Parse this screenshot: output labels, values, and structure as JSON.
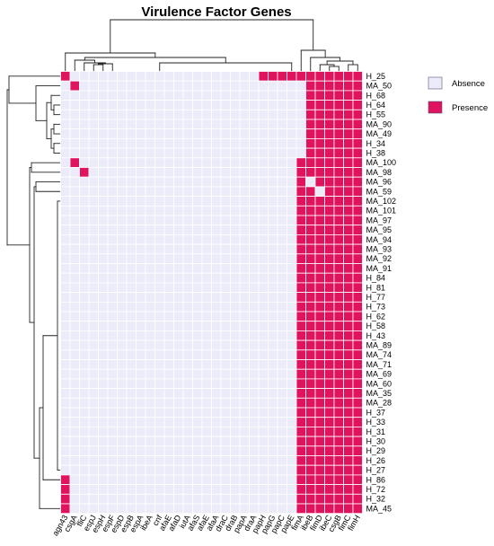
{
  "chart_data": {
    "type": "heatmap",
    "title": "Virulence Factor Genes",
    "columns": [
      "agn43",
      "csgA",
      "fliC",
      "espJ",
      "espH",
      "espF",
      "espD",
      "espB",
      "espA",
      "ibeA",
      "cnf",
      "afaE",
      "afaD",
      "iutA",
      "afaS",
      "afaE",
      "afaA",
      "draC",
      "draB",
      "papA",
      "draA",
      "papH",
      "papG",
      "papC",
      "papE",
      "fimA",
      "ibeB",
      "fimD",
      "ibeC",
      "csgB",
      "fimC",
      "fimH"
    ],
    "rows": [
      "H_25",
      "MA_50",
      "H_68",
      "H_64",
      "H_55",
      "MA_90",
      "MA_49",
      "H_34",
      "H_38",
      "MA_100",
      "MA_98",
      "MA_96",
      "MA_59",
      "MA_102",
      "MA_101",
      "MA_97",
      "MA_95",
      "MA_94",
      "MA_93",
      "MA_92",
      "MA_91",
      "H_84",
      "H_81",
      "H_77",
      "H_73",
      "H_62",
      "H_58",
      "H_43",
      "MA_89",
      "MA_74",
      "MA_71",
      "MA_69",
      "MA_60",
      "MA_35",
      "MA_28",
      "H_37",
      "H_33",
      "H_31",
      "H_30",
      "H_29",
      "H_26",
      "H_27",
      "H_86",
      "H_72",
      "H_32",
      "MA_45"
    ],
    "legend": [
      {
        "label": "Absence",
        "value": 0,
        "color": "#ebebfa"
      },
      {
        "label": "Presence",
        "value": 1,
        "color": "#e0135f"
      }
    ],
    "values": [
      [
        1,
        0,
        0,
        0,
        0,
        0,
        0,
        0,
        0,
        0,
        0,
        0,
        0,
        0,
        0,
        0,
        0,
        0,
        0,
        0,
        0,
        1,
        1,
        1,
        1,
        1,
        1,
        1,
        1,
        1,
        1,
        1
      ],
      [
        0,
        1,
        0,
        0,
        0,
        0,
        0,
        0,
        0,
        0,
        0,
        0,
        0,
        0,
        0,
        0,
        0,
        0,
        0,
        0,
        0,
        0,
        0,
        0,
        0,
        0,
        1,
        1,
        1,
        1,
        1,
        1
      ],
      [
        0,
        0,
        0,
        0,
        0,
        0,
        0,
        0,
        0,
        0,
        0,
        0,
        0,
        0,
        0,
        0,
        0,
        0,
        0,
        0,
        0,
        0,
        0,
        0,
        0,
        0,
        1,
        1,
        1,
        1,
        1,
        1
      ],
      [
        0,
        0,
        0,
        0,
        0,
        0,
        0,
        0,
        0,
        0,
        0,
        0,
        0,
        0,
        0,
        0,
        0,
        0,
        0,
        0,
        0,
        0,
        0,
        0,
        0,
        0,
        1,
        1,
        1,
        1,
        1,
        1
      ],
      [
        0,
        0,
        0,
        0,
        0,
        0,
        0,
        0,
        0,
        0,
        0,
        0,
        0,
        0,
        0,
        0,
        0,
        0,
        0,
        0,
        0,
        0,
        0,
        0,
        0,
        0,
        1,
        1,
        1,
        1,
        1,
        1
      ],
      [
        0,
        0,
        0,
        0,
        0,
        0,
        0,
        0,
        0,
        0,
        0,
        0,
        0,
        0,
        0,
        0,
        0,
        0,
        0,
        0,
        0,
        0,
        0,
        0,
        0,
        0,
        1,
        1,
        1,
        1,
        1,
        1
      ],
      [
        0,
        0,
        0,
        0,
        0,
        0,
        0,
        0,
        0,
        0,
        0,
        0,
        0,
        0,
        0,
        0,
        0,
        0,
        0,
        0,
        0,
        0,
        0,
        0,
        0,
        0,
        1,
        1,
        1,
        1,
        1,
        1
      ],
      [
        0,
        0,
        0,
        0,
        0,
        0,
        0,
        0,
        0,
        0,
        0,
        0,
        0,
        0,
        0,
        0,
        0,
        0,
        0,
        0,
        0,
        0,
        0,
        0,
        0,
        0,
        1,
        1,
        1,
        1,
        1,
        1
      ],
      [
        0,
        0,
        0,
        0,
        0,
        0,
        0,
        0,
        0,
        0,
        0,
        0,
        0,
        0,
        0,
        0,
        0,
        0,
        0,
        0,
        0,
        0,
        0,
        0,
        0,
        0,
        1,
        1,
        1,
        1,
        1,
        1
      ],
      [
        0,
        1,
        0,
        0,
        0,
        0,
        0,
        0,
        0,
        0,
        0,
        0,
        0,
        0,
        0,
        0,
        0,
        0,
        0,
        0,
        0,
        0,
        0,
        0,
        0,
        1,
        1,
        1,
        1,
        1,
        1,
        1
      ],
      [
        0,
        0,
        1,
        0,
        0,
        0,
        0,
        0,
        0,
        0,
        0,
        0,
        0,
        0,
        0,
        0,
        0,
        0,
        0,
        0,
        0,
        0,
        0,
        0,
        0,
        1,
        1,
        1,
        1,
        1,
        1,
        1
      ],
      [
        0,
        0,
        0,
        0,
        0,
        0,
        0,
        0,
        0,
        0,
        0,
        0,
        0,
        0,
        0,
        0,
        0,
        0,
        0,
        0,
        0,
        0,
        0,
        0,
        0,
        1,
        0,
        1,
        1,
        1,
        1,
        1
      ],
      [
        0,
        0,
        0,
        0,
        0,
        0,
        0,
        0,
        0,
        0,
        0,
        0,
        0,
        0,
        0,
        0,
        0,
        0,
        0,
        0,
        0,
        0,
        0,
        0,
        0,
        1,
        1,
        0,
        1,
        1,
        1,
        1
      ],
      [
        0,
        0,
        0,
        0,
        0,
        0,
        0,
        0,
        0,
        0,
        0,
        0,
        0,
        0,
        0,
        0,
        0,
        0,
        0,
        0,
        0,
        0,
        0,
        0,
        0,
        1,
        1,
        1,
        1,
        1,
        1,
        1
      ],
      [
        0,
        0,
        0,
        0,
        0,
        0,
        0,
        0,
        0,
        0,
        0,
        0,
        0,
        0,
        0,
        0,
        0,
        0,
        0,
        0,
        0,
        0,
        0,
        0,
        0,
        1,
        1,
        1,
        1,
        1,
        1,
        1
      ],
      [
        0,
        0,
        0,
        0,
        0,
        0,
        0,
        0,
        0,
        0,
        0,
        0,
        0,
        0,
        0,
        0,
        0,
        0,
        0,
        0,
        0,
        0,
        0,
        0,
        0,
        1,
        1,
        1,
        1,
        1,
        1,
        1
      ],
      [
        0,
        0,
        0,
        0,
        0,
        0,
        0,
        0,
        0,
        0,
        0,
        0,
        0,
        0,
        0,
        0,
        0,
        0,
        0,
        0,
        0,
        0,
        0,
        0,
        0,
        1,
        1,
        1,
        1,
        1,
        1,
        1
      ],
      [
        0,
        0,
        0,
        0,
        0,
        0,
        0,
        0,
        0,
        0,
        0,
        0,
        0,
        0,
        0,
        0,
        0,
        0,
        0,
        0,
        0,
        0,
        0,
        0,
        0,
        1,
        1,
        1,
        1,
        1,
        1,
        1
      ],
      [
        0,
        0,
        0,
        0,
        0,
        0,
        0,
        0,
        0,
        0,
        0,
        0,
        0,
        0,
        0,
        0,
        0,
        0,
        0,
        0,
        0,
        0,
        0,
        0,
        0,
        1,
        1,
        1,
        1,
        1,
        1,
        1
      ],
      [
        0,
        0,
        0,
        0,
        0,
        0,
        0,
        0,
        0,
        0,
        0,
        0,
        0,
        0,
        0,
        0,
        0,
        0,
        0,
        0,
        0,
        0,
        0,
        0,
        0,
        1,
        1,
        1,
        1,
        1,
        1,
        1
      ],
      [
        0,
        0,
        0,
        0,
        0,
        0,
        0,
        0,
        0,
        0,
        0,
        0,
        0,
        0,
        0,
        0,
        0,
        0,
        0,
        0,
        0,
        0,
        0,
        0,
        0,
        1,
        1,
        1,
        1,
        1,
        1,
        1
      ],
      [
        0,
        0,
        0,
        0,
        0,
        0,
        0,
        0,
        0,
        0,
        0,
        0,
        0,
        0,
        0,
        0,
        0,
        0,
        0,
        0,
        0,
        0,
        0,
        0,
        0,
        1,
        1,
        1,
        1,
        1,
        1,
        1
      ],
      [
        0,
        0,
        0,
        0,
        0,
        0,
        0,
        0,
        0,
        0,
        0,
        0,
        0,
        0,
        0,
        0,
        0,
        0,
        0,
        0,
        0,
        0,
        0,
        0,
        0,
        1,
        1,
        1,
        1,
        1,
        1,
        1
      ],
      [
        0,
        0,
        0,
        0,
        0,
        0,
        0,
        0,
        0,
        0,
        0,
        0,
        0,
        0,
        0,
        0,
        0,
        0,
        0,
        0,
        0,
        0,
        0,
        0,
        0,
        1,
        1,
        1,
        1,
        1,
        1,
        1
      ],
      [
        0,
        0,
        0,
        0,
        0,
        0,
        0,
        0,
        0,
        0,
        0,
        0,
        0,
        0,
        0,
        0,
        0,
        0,
        0,
        0,
        0,
        0,
        0,
        0,
        0,
        1,
        1,
        1,
        1,
        1,
        1,
        1
      ],
      [
        0,
        0,
        0,
        0,
        0,
        0,
        0,
        0,
        0,
        0,
        0,
        0,
        0,
        0,
        0,
        0,
        0,
        0,
        0,
        0,
        0,
        0,
        0,
        0,
        0,
        1,
        1,
        1,
        1,
        1,
        1,
        1
      ],
      [
        0,
        0,
        0,
        0,
        0,
        0,
        0,
        0,
        0,
        0,
        0,
        0,
        0,
        0,
        0,
        0,
        0,
        0,
        0,
        0,
        0,
        0,
        0,
        0,
        0,
        1,
        1,
        1,
        1,
        1,
        1,
        1
      ],
      [
        0,
        0,
        0,
        0,
        0,
        0,
        0,
        0,
        0,
        0,
        0,
        0,
        0,
        0,
        0,
        0,
        0,
        0,
        0,
        0,
        0,
        0,
        0,
        0,
        0,
        1,
        1,
        1,
        1,
        1,
        1,
        1
      ],
      [
        0,
        0,
        0,
        0,
        0,
        0,
        0,
        0,
        0,
        0,
        0,
        0,
        0,
        0,
        0,
        0,
        0,
        0,
        0,
        0,
        0,
        0,
        0,
        0,
        0,
        1,
        1,
        1,
        1,
        1,
        1,
        1
      ],
      [
        0,
        0,
        0,
        0,
        0,
        0,
        0,
        0,
        0,
        0,
        0,
        0,
        0,
        0,
        0,
        0,
        0,
        0,
        0,
        0,
        0,
        0,
        0,
        0,
        0,
        1,
        1,
        1,
        1,
        1,
        1,
        1
      ],
      [
        0,
        0,
        0,
        0,
        0,
        0,
        0,
        0,
        0,
        0,
        0,
        0,
        0,
        0,
        0,
        0,
        0,
        0,
        0,
        0,
        0,
        0,
        0,
        0,
        0,
        1,
        1,
        1,
        1,
        1,
        1,
        1
      ],
      [
        0,
        0,
        0,
        0,
        0,
        0,
        0,
        0,
        0,
        0,
        0,
        0,
        0,
        0,
        0,
        0,
        0,
        0,
        0,
        0,
        0,
        0,
        0,
        0,
        0,
        1,
        1,
        1,
        1,
        1,
        1,
        1
      ],
      [
        0,
        0,
        0,
        0,
        0,
        0,
        0,
        0,
        0,
        0,
        0,
        0,
        0,
        0,
        0,
        0,
        0,
        0,
        0,
        0,
        0,
        0,
        0,
        0,
        0,
        1,
        1,
        1,
        1,
        1,
        1,
        1
      ],
      [
        0,
        0,
        0,
        0,
        0,
        0,
        0,
        0,
        0,
        0,
        0,
        0,
        0,
        0,
        0,
        0,
        0,
        0,
        0,
        0,
        0,
        0,
        0,
        0,
        0,
        1,
        1,
        1,
        1,
        1,
        1,
        1
      ],
      [
        0,
        0,
        0,
        0,
        0,
        0,
        0,
        0,
        0,
        0,
        0,
        0,
        0,
        0,
        0,
        0,
        0,
        0,
        0,
        0,
        0,
        0,
        0,
        0,
        0,
        1,
        1,
        1,
        1,
        1,
        1,
        1
      ],
      [
        0,
        0,
        0,
        0,
        0,
        0,
        0,
        0,
        0,
        0,
        0,
        0,
        0,
        0,
        0,
        0,
        0,
        0,
        0,
        0,
        0,
        0,
        0,
        0,
        0,
        1,
        1,
        1,
        1,
        1,
        1,
        1
      ],
      [
        0,
        0,
        0,
        0,
        0,
        0,
        0,
        0,
        0,
        0,
        0,
        0,
        0,
        0,
        0,
        0,
        0,
        0,
        0,
        0,
        0,
        0,
        0,
        0,
        0,
        1,
        1,
        1,
        1,
        1,
        1,
        1
      ],
      [
        0,
        0,
        0,
        0,
        0,
        0,
        0,
        0,
        0,
        0,
        0,
        0,
        0,
        0,
        0,
        0,
        0,
        0,
        0,
        0,
        0,
        0,
        0,
        0,
        0,
        1,
        1,
        1,
        1,
        1,
        1,
        1
      ],
      [
        0,
        0,
        0,
        0,
        0,
        0,
        0,
        0,
        0,
        0,
        0,
        0,
        0,
        0,
        0,
        0,
        0,
        0,
        0,
        0,
        0,
        0,
        0,
        0,
        0,
        1,
        1,
        1,
        1,
        1,
        1,
        1
      ],
      [
        0,
        0,
        0,
        0,
        0,
        0,
        0,
        0,
        0,
        0,
        0,
        0,
        0,
        0,
        0,
        0,
        0,
        0,
        0,
        0,
        0,
        0,
        0,
        0,
        0,
        1,
        1,
        1,
        1,
        1,
        1,
        1
      ],
      [
        0,
        0,
        0,
        0,
        0,
        0,
        0,
        0,
        0,
        0,
        0,
        0,
        0,
        0,
        0,
        0,
        0,
        0,
        0,
        0,
        0,
        0,
        0,
        0,
        0,
        1,
        1,
        1,
        1,
        1,
        1,
        1
      ],
      [
        0,
        0,
        0,
        0,
        0,
        0,
        0,
        0,
        0,
        0,
        0,
        0,
        0,
        0,
        0,
        0,
        0,
        0,
        0,
        0,
        0,
        0,
        0,
        0,
        0,
        1,
        1,
        1,
        1,
        1,
        1,
        1
      ],
      [
        1,
        0,
        0,
        0,
        0,
        0,
        0,
        0,
        0,
        0,
        0,
        0,
        0,
        0,
        0,
        0,
        0,
        0,
        0,
        0,
        0,
        0,
        0,
        0,
        0,
        1,
        1,
        1,
        1,
        1,
        1,
        1
      ],
      [
        1,
        0,
        0,
        0,
        0,
        0,
        0,
        0,
        0,
        0,
        0,
        0,
        0,
        0,
        0,
        0,
        0,
        0,
        0,
        0,
        0,
        0,
        0,
        0,
        0,
        1,
        1,
        1,
        1,
        1,
        1,
        1
      ],
      [
        1,
        0,
        0,
        0,
        0,
        0,
        0,
        0,
        0,
        0,
        0,
        0,
        0,
        0,
        0,
        0,
        0,
        0,
        0,
        0,
        0,
        0,
        0,
        0,
        0,
        1,
        1,
        1,
        1,
        1,
        1,
        1
      ],
      [
        1,
        0,
        0,
        0,
        0,
        0,
        0,
        0,
        0,
        0,
        0,
        0,
        0,
        0,
        0,
        0,
        0,
        0,
        0,
        0,
        0,
        0,
        0,
        0,
        0,
        1,
        1,
        1,
        1,
        1,
        1,
        1
      ]
    ],
    "row_dendrogram": true,
    "column_dendrogram": true,
    "grid": true,
    "legend_position": "right"
  }
}
